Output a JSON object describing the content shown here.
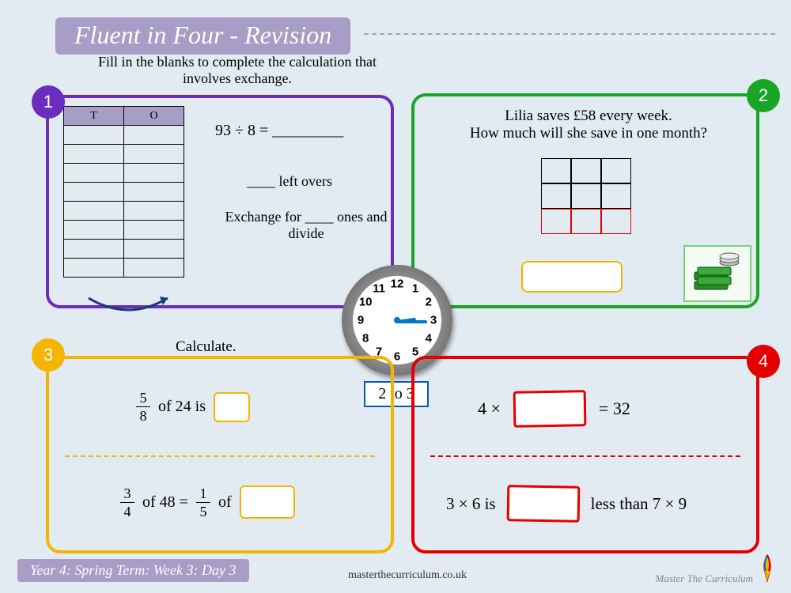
{
  "title": "Fluent in Four - Revision",
  "instruction": "Fill in the blanks to complete the calculation that involves exchange.",
  "panels": {
    "p1": {
      "number": "1",
      "color": "#6a2dbd",
      "table_headers": [
        "T",
        "O"
      ],
      "table_rows": 8,
      "equation": "93 ÷ 8 = _________",
      "leftovers": "____ left overs",
      "exchange": "Exchange for ____ ones and divide"
    },
    "p2": {
      "number": "2",
      "color": "#1aa625",
      "line1": "Lilia saves £58 every week.",
      "line2": "How much will she save in one month?"
    },
    "p3": {
      "number": "3",
      "color": "#f5b400",
      "title": "Calculate.",
      "q1": {
        "num": "5",
        "den": "8",
        "mid": "of 24 is"
      },
      "q2": {
        "num": "3",
        "den": "4",
        "mid": "of 48 =",
        "num2": "1",
        "den2": "5",
        "tail": "of"
      }
    },
    "p4": {
      "number": "4",
      "color": "#e40000",
      "q1_left": "4 ×",
      "q1_right": "= 32",
      "q2_left": "3 × 6 is",
      "q2_right": "less than 7 × 9"
    }
  },
  "clock": {
    "numbers": [
      "12",
      "1",
      "2",
      "3",
      "4",
      "5",
      "6",
      "7",
      "8",
      "9",
      "10",
      "11"
    ],
    "hour_angle": 330,
    "minute_angle": 0,
    "label": "2 to 3"
  },
  "footer": {
    "bar": "Year 4: Spring Term: Week 3: Day 3",
    "url": "masterthecurriculum.co.uk",
    "brand": "Master The Curriculum"
  },
  "colors": {
    "background": "#e3ebf2",
    "title_bg": "#a79dc7"
  }
}
